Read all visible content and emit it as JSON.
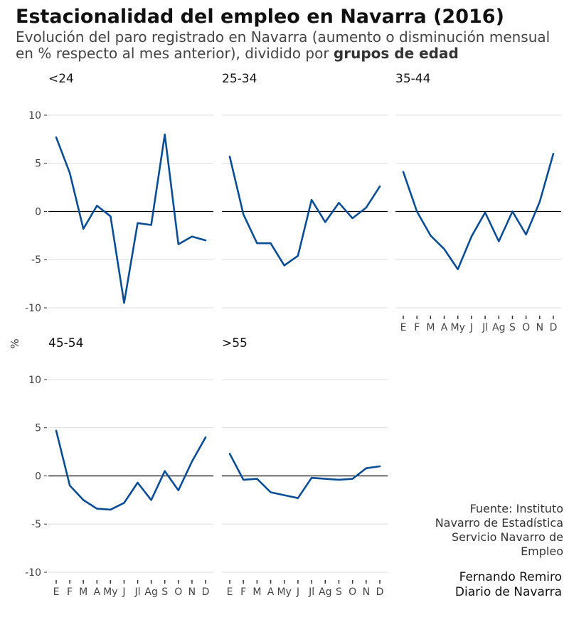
{
  "title": "Estacionalidad del empleo en Navarra (2016)",
  "subtitle_plain": "Evolución del paro registrado en Navarra (aumento o disminución mensual en % respecto al mes anterior), dividido por",
  "subtitle_bold": "grupos de edad",
  "source_lines": [
    "Fuente: Instituto",
    "Navarro de Estadística",
    "Servicio Navarro de",
    "Empleo"
  ],
  "author_lines": [
    "Fernando  Remiro",
    "Diario de Navarra"
  ],
  "colors": {
    "line": "#0a4d94",
    "grid": "#dcdcdc",
    "zero": "#000000"
  },
  "chart_data": {
    "type": "line",
    "ylabel": "%",
    "ylim": [
      -10,
      10
    ],
    "yticks": [
      "10",
      "5",
      "0",
      "-5",
      "-10"
    ],
    "categories": [
      "E",
      "F",
      "M",
      "A",
      "My",
      "J",
      "Jl",
      "Ag",
      "S",
      "O",
      "N",
      "D"
    ],
    "grid": true,
    "series": [
      {
        "name": "<24",
        "values": [
          7.7,
          4.0,
          -1.8,
          0.6,
          -0.5,
          -9.5,
          -1.2,
          -1.4,
          8.0,
          -3.4,
          -2.6,
          -3.0
        ]
      },
      {
        "name": "25-34",
        "values": [
          5.7,
          -0.3,
          -3.3,
          -3.3,
          -5.6,
          -4.6,
          1.2,
          -1.1,
          0.9,
          -0.7,
          0.4,
          2.6
        ]
      },
      {
        "name": "35-44",
        "values": [
          4.1,
          0.0,
          -2.5,
          -3.9,
          -6.0,
          -2.6,
          -0.1,
          -3.1,
          0.0,
          -2.4,
          1.0,
          6.0
        ]
      },
      {
        "name": "45-54",
        "values": [
          4.7,
          -1.0,
          -2.5,
          -3.4,
          -3.5,
          -2.8,
          -0.7,
          -2.5,
          0.5,
          -1.5,
          1.5,
          4.0
        ]
      },
      {
        "name": ">55",
        "values": [
          2.3,
          -0.4,
          -0.3,
          -1.7,
          -2.0,
          -2.3,
          -0.2,
          -0.3,
          -0.4,
          -0.3,
          0.8,
          1.0
        ]
      }
    ]
  }
}
